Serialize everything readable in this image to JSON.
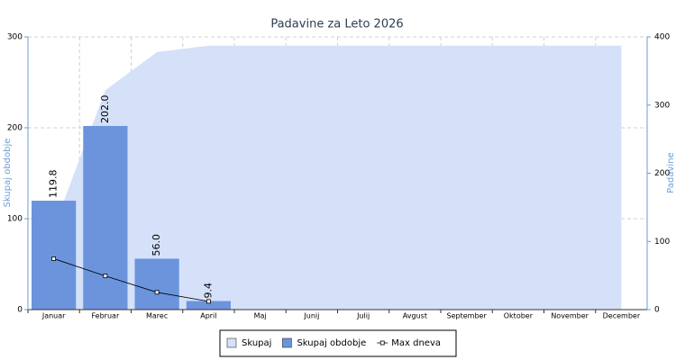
{
  "chart_data": {
    "type": "bar",
    "title": "Padavine za Leto 2026",
    "y_label": "Skupaj obdobje",
    "y2_label": "Padavine",
    "categories": [
      "Januar",
      "Februar",
      "Marec",
      "April",
      "Maj",
      "Junij",
      "Julij",
      "Avgust",
      "September",
      "Oktober",
      "November",
      "December"
    ],
    "ylim": [
      0,
      300
    ],
    "yticks": [
      0,
      100,
      200,
      300
    ],
    "y2lim": [
      0,
      400
    ],
    "y2ticks": [
      0,
      100,
      200,
      300,
      400
    ],
    "grid": true,
    "legend": "bottom",
    "series": [
      {
        "name": "Skupaj",
        "type": "area",
        "axis": "y2",
        "color": "#d4e1f8",
        "values": [
          119.8,
          321.8,
          377.8,
          387.2,
          387.2,
          387.2,
          387.2,
          387.2,
          387.2,
          387.2,
          387.2,
          387.2
        ]
      },
      {
        "name": "Skupaj obdobje",
        "type": "bar",
        "color": "#6b94dc",
        "values": [
          119.8,
          202.0,
          56.0,
          9.4,
          null,
          null,
          null,
          null,
          null,
          null,
          null,
          null
        ],
        "value_labels": [
          "119.8",
          "202.0",
          "56.0",
          "9.4",
          null,
          null,
          null,
          null,
          null,
          null,
          null,
          null
        ]
      },
      {
        "name": "Max dneva",
        "type": "line",
        "color": "#000000",
        "values": [
          56,
          37,
          19,
          9,
          null,
          null,
          null,
          null,
          null,
          null,
          null,
          null
        ]
      }
    ]
  }
}
